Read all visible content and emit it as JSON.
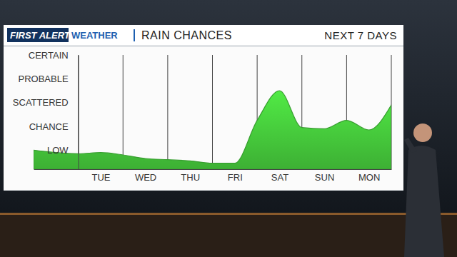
{
  "chart_data": {
    "type": "area",
    "title": "RAIN CHANCES",
    "subtitle": "NEXT 7 DAYS",
    "annotations": [
      "FIRST ALERT",
      "WEATHER"
    ],
    "categories": [
      null,
      null,
      null,
      "TUE",
      null,
      "WED",
      null,
      "THU",
      null,
      "FRI",
      null,
      "SAT",
      null,
      "SUN",
      null,
      "MON",
      null
    ],
    "values": [
      1.0,
      0.9,
      0.85,
      0.9,
      0.8,
      0.65,
      0.6,
      0.55,
      0.45,
      0.45,
      2.25,
      3.5,
      1.95,
      1.9,
      2.25,
      1.85,
      2.9
    ],
    "color": "#44c43a",
    "ylim": [
      0.2,
      5
    ],
    "yticks": [
      {
        "value": 1,
        "label": "LOW"
      },
      {
        "value": 2,
        "label": "CHANCE"
      },
      {
        "value": 3,
        "label": "SCATTERED"
      },
      {
        "value": 4,
        "label": "PROBABLE"
      },
      {
        "value": 5,
        "label": "CERTAIN"
      }
    ]
  }
}
